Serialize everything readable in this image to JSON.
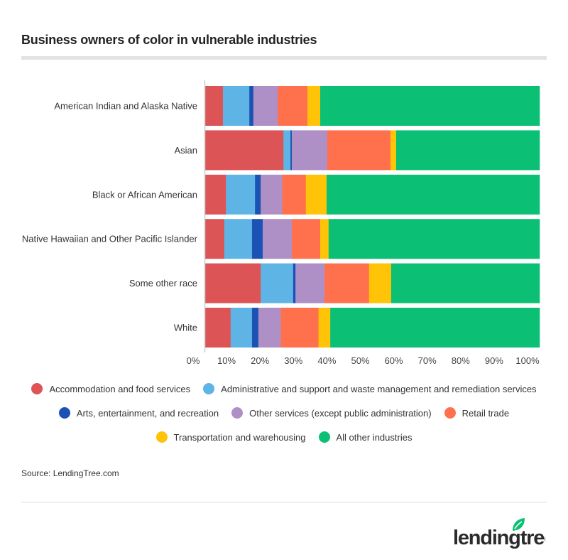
{
  "title": "Business owners of color in vulnerable industries",
  "source": "Source: LendingTree.com",
  "logo": "lendingtree",
  "chart_data": {
    "type": "bar",
    "orientation": "horizontal",
    "stacked": true,
    "title": "Business owners of color in vulnerable industries",
    "xlabel": "",
    "ylabel": "",
    "xlim": [
      0,
      100
    ],
    "x_ticks": [
      "0%",
      "10%",
      "20%",
      "30%",
      "40%",
      "50%",
      "60%",
      "70%",
      "80%",
      "90%",
      "100%"
    ],
    "legend_position": "bottom",
    "grid": false,
    "categories": [
      "American Indian and Alaska Native",
      "Asian",
      "Black or African American",
      "Native Hawaiian and Other Pacific Islander",
      "Some other race",
      "White"
    ],
    "series": [
      {
        "name": "Accommodation and food services",
        "color": "#DC5456",
        "values": [
          5.3,
          23.4,
          6.2,
          5.7,
          16.6,
          7.6
        ]
      },
      {
        "name": "Administrative and support and waste management and remediation services",
        "color": "#5EB5E5",
        "values": [
          7.9,
          2.1,
          8.7,
          8.3,
          9.7,
          6.4
        ]
      },
      {
        "name": "Arts, entertainment, and recreation",
        "color": "#1C52B3",
        "values": [
          1.2,
          0.4,
          1.7,
          3.2,
          0.7,
          1.9
        ]
      },
      {
        "name": "Other services (except public administration)",
        "color": "#AE90C6",
        "values": [
          7.3,
          10.6,
          6.4,
          8.7,
          8.7,
          6.7
        ]
      },
      {
        "name": "Retail trade",
        "color": "#FF714D",
        "values": [
          8.9,
          18.9,
          7.1,
          8.5,
          13.3,
          11.3
        ]
      },
      {
        "name": "Transportation and warehousing",
        "color": "#FFC408",
        "values": [
          3.8,
          1.7,
          6.2,
          2.5,
          6.6,
          3.5
        ]
      },
      {
        "name": "All other industries",
        "color": "#0BC074",
        "values": [
          65.6,
          42.9,
          63.7,
          63.1,
          44.4,
          62.6
        ]
      }
    ]
  }
}
